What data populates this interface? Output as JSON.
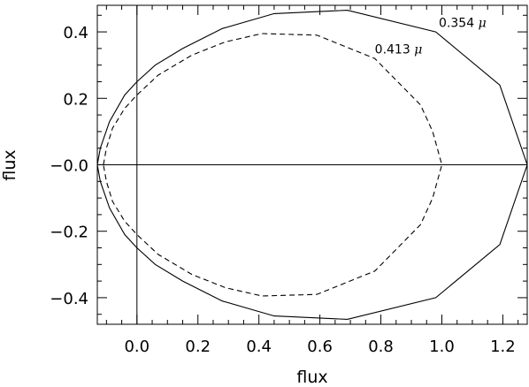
{
  "chart_data": {
    "type": "line",
    "title": "",
    "xlabel": "flux",
    "ylabel": "flux",
    "xlim": [
      -0.13,
      1.28
    ],
    "ylim": [
      -0.48,
      0.48
    ],
    "x_ticks": [
      0.0,
      0.2,
      0.4,
      0.6,
      0.8,
      1.0,
      1.2
    ],
    "x_tick_labels": [
      "0.0",
      "0.2",
      "0.4",
      "0.6",
      "0.8",
      "1.0",
      "1.2"
    ],
    "y_ticks": [
      0.4,
      0.2,
      0.0,
      -0.2,
      -0.4
    ],
    "y_tick_labels": [
      "0.4",
      "0.2",
      "−0.0",
      "−0.2",
      "−0.4"
    ],
    "reference_lines": {
      "x": 0,
      "y": 0
    },
    "grid": false,
    "series": [
      {
        "name": "0.354 μ",
        "style": "solid",
        "x": [
          -0.13,
          -0.12,
          -0.09,
          -0.04,
          0.0,
          0.06,
          0.15,
          0.28,
          0.45,
          0.69,
          0.98,
          1.19,
          1.28,
          1.19,
          0.98,
          0.69,
          0.45,
          0.28,
          0.15,
          0.06,
          0.0,
          -0.04,
          -0.09,
          -0.12,
          -0.13
        ],
        "y": [
          0.0,
          0.05,
          0.13,
          0.21,
          0.25,
          0.3,
          0.35,
          0.41,
          0.455,
          0.465,
          0.4,
          0.24,
          0.0,
          -0.24,
          -0.4,
          -0.465,
          -0.455,
          -0.41,
          -0.35,
          -0.3,
          -0.25,
          -0.21,
          -0.13,
          -0.05,
          0.0
        ]
      },
      {
        "name": "0.413 μ",
        "style": "dashed",
        "x": [
          -0.11,
          -0.1,
          -0.08,
          -0.04,
          0.0,
          0.07,
          0.18,
          0.29,
          0.41,
          0.59,
          0.78,
          0.93,
          0.97,
          1.0,
          0.97,
          0.93,
          0.78,
          0.59,
          0.41,
          0.29,
          0.18,
          0.07,
          0.0,
          -0.04,
          -0.08,
          -0.1,
          -0.11
        ],
        "y": [
          0.0,
          0.05,
          0.11,
          0.17,
          0.21,
          0.27,
          0.33,
          0.37,
          0.395,
          0.39,
          0.32,
          0.18,
          0.1,
          0.0,
          -0.1,
          -0.18,
          -0.32,
          -0.39,
          -0.395,
          -0.37,
          -0.33,
          -0.27,
          -0.21,
          -0.17,
          -0.11,
          -0.05,
          0.0
        ]
      }
    ],
    "annotations": [
      {
        "number": "0.354",
        "unit": "μ",
        "x": 0.99,
        "y": 0.415
      },
      {
        "number": "0.413",
        "unit": "μ",
        "x": 0.78,
        "y": 0.335
      }
    ]
  }
}
